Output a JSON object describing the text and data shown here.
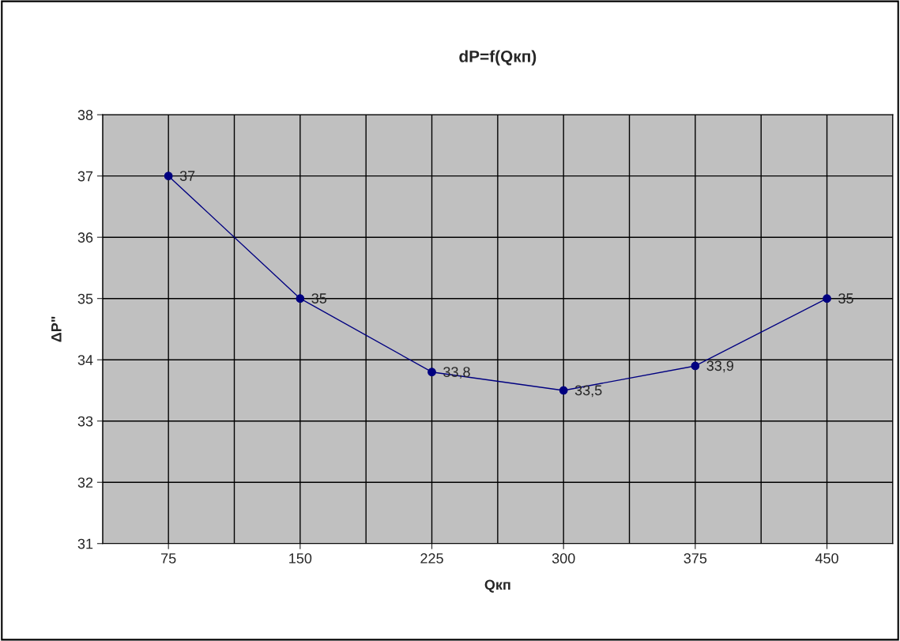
{
  "chart_data": {
    "type": "line",
    "title": "dP=f(Qкп)",
    "xlabel": "Qкп",
    "ylabel": "ΔP\"",
    "categories": [
      "75",
      "150",
      "225",
      "300",
      "375",
      "450"
    ],
    "series": [
      {
        "color": "#000080",
        "values": [
          37,
          35,
          33.8,
          33.5,
          33.9,
          35
        ],
        "value_labels": [
          "37",
          "35",
          "33,8",
          "33,5",
          "33,9",
          "35"
        ]
      }
    ],
    "ylim": [
      31,
      38
    ],
    "yticks": [
      31,
      32,
      33,
      34,
      35,
      36,
      37,
      38
    ],
    "grid": true,
    "marker": "circle",
    "line_style": "solid",
    "legend": false
  }
}
